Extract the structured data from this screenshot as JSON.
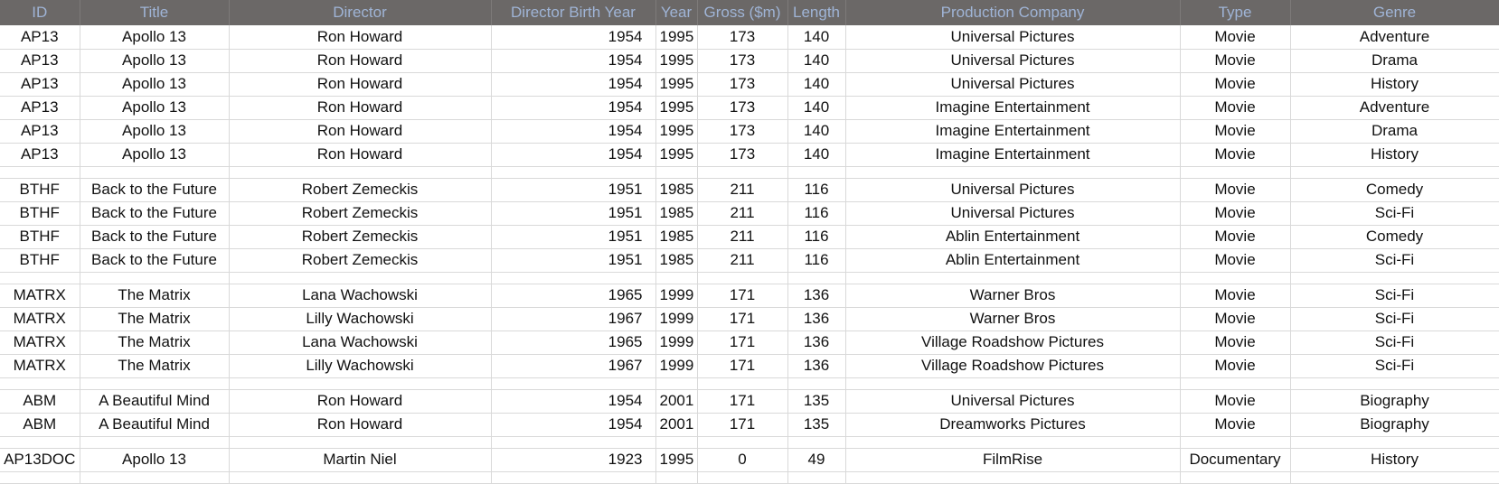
{
  "columns": [
    "ID",
    "Title",
    "Director",
    "Director Birth Year",
    "Year",
    "Gross ($m)",
    "Length",
    "Production Company",
    "Type",
    "Genre"
  ],
  "rows": [
    [
      "AP13",
      "Apollo 13",
      "Ron Howard",
      "1954",
      "1995",
      "173",
      "140",
      "Universal Pictures",
      "Movie",
      "Adventure"
    ],
    [
      "AP13",
      "Apollo 13",
      "Ron Howard",
      "1954",
      "1995",
      "173",
      "140",
      "Universal Pictures",
      "Movie",
      "Drama"
    ],
    [
      "AP13",
      "Apollo 13",
      "Ron Howard",
      "1954",
      "1995",
      "173",
      "140",
      "Universal Pictures",
      "Movie",
      "History"
    ],
    [
      "AP13",
      "Apollo 13",
      "Ron Howard",
      "1954",
      "1995",
      "173",
      "140",
      "Imagine Entertainment",
      "Movie",
      "Adventure"
    ],
    [
      "AP13",
      "Apollo 13",
      "Ron Howard",
      "1954",
      "1995",
      "173",
      "140",
      "Imagine Entertainment",
      "Movie",
      "Drama"
    ],
    [
      "AP13",
      "Apollo 13",
      "Ron Howard",
      "1954",
      "1995",
      "173",
      "140",
      "Imagine Entertainment",
      "Movie",
      "History"
    ],
    null,
    [
      "BTHF",
      "Back to the Future",
      "Robert Zemeckis",
      "1951",
      "1985",
      "211",
      "116",
      "Universal Pictures",
      "Movie",
      "Comedy"
    ],
    [
      "BTHF",
      "Back to the Future",
      "Robert Zemeckis",
      "1951",
      "1985",
      "211",
      "116",
      "Universal Pictures",
      "Movie",
      "Sci-Fi"
    ],
    [
      "BTHF",
      "Back to the Future",
      "Robert Zemeckis",
      "1951",
      "1985",
      "211",
      "116",
      "Ablin Entertainment",
      "Movie",
      "Comedy"
    ],
    [
      "BTHF",
      "Back to the Future",
      "Robert Zemeckis",
      "1951",
      "1985",
      "211",
      "116",
      "Ablin Entertainment",
      "Movie",
      "Sci-Fi"
    ],
    null,
    [
      "MATRX",
      "The Matrix",
      "Lana Wachowski",
      "1965",
      "1999",
      "171",
      "136",
      "Warner Bros",
      "Movie",
      "Sci-Fi"
    ],
    [
      "MATRX",
      "The Matrix",
      "Lilly Wachowski",
      "1967",
      "1999",
      "171",
      "136",
      "Warner Bros",
      "Movie",
      "Sci-Fi"
    ],
    [
      "MATRX",
      "The Matrix",
      "Lana Wachowski",
      "1965",
      "1999",
      "171",
      "136",
      "Village Roadshow Pictures",
      "Movie",
      "Sci-Fi"
    ],
    [
      "MATRX",
      "The Matrix",
      "Lilly Wachowski",
      "1967",
      "1999",
      "171",
      "136",
      "Village Roadshow Pictures",
      "Movie",
      "Sci-Fi"
    ],
    null,
    [
      "ABM",
      "A Beautiful Mind",
      "Ron Howard",
      "1954",
      "2001",
      "171",
      "135",
      "Universal Pictures",
      "Movie",
      "Biography"
    ],
    [
      "ABM",
      "A Beautiful Mind",
      "Ron Howard",
      "1954",
      "2001",
      "171",
      "135",
      "Dreamworks Pictures",
      "Movie",
      "Biography"
    ],
    null,
    [
      "AP13DOC",
      "Apollo 13",
      "Martin Niel",
      "1923",
      "1995",
      "0",
      "49",
      "FilmRise",
      "Documentary",
      "History"
    ],
    null
  ],
  "colors": {
    "header_bg": "#6b6867",
    "header_text": "#9fb4d6",
    "grid_line": "#d9d9d9"
  }
}
